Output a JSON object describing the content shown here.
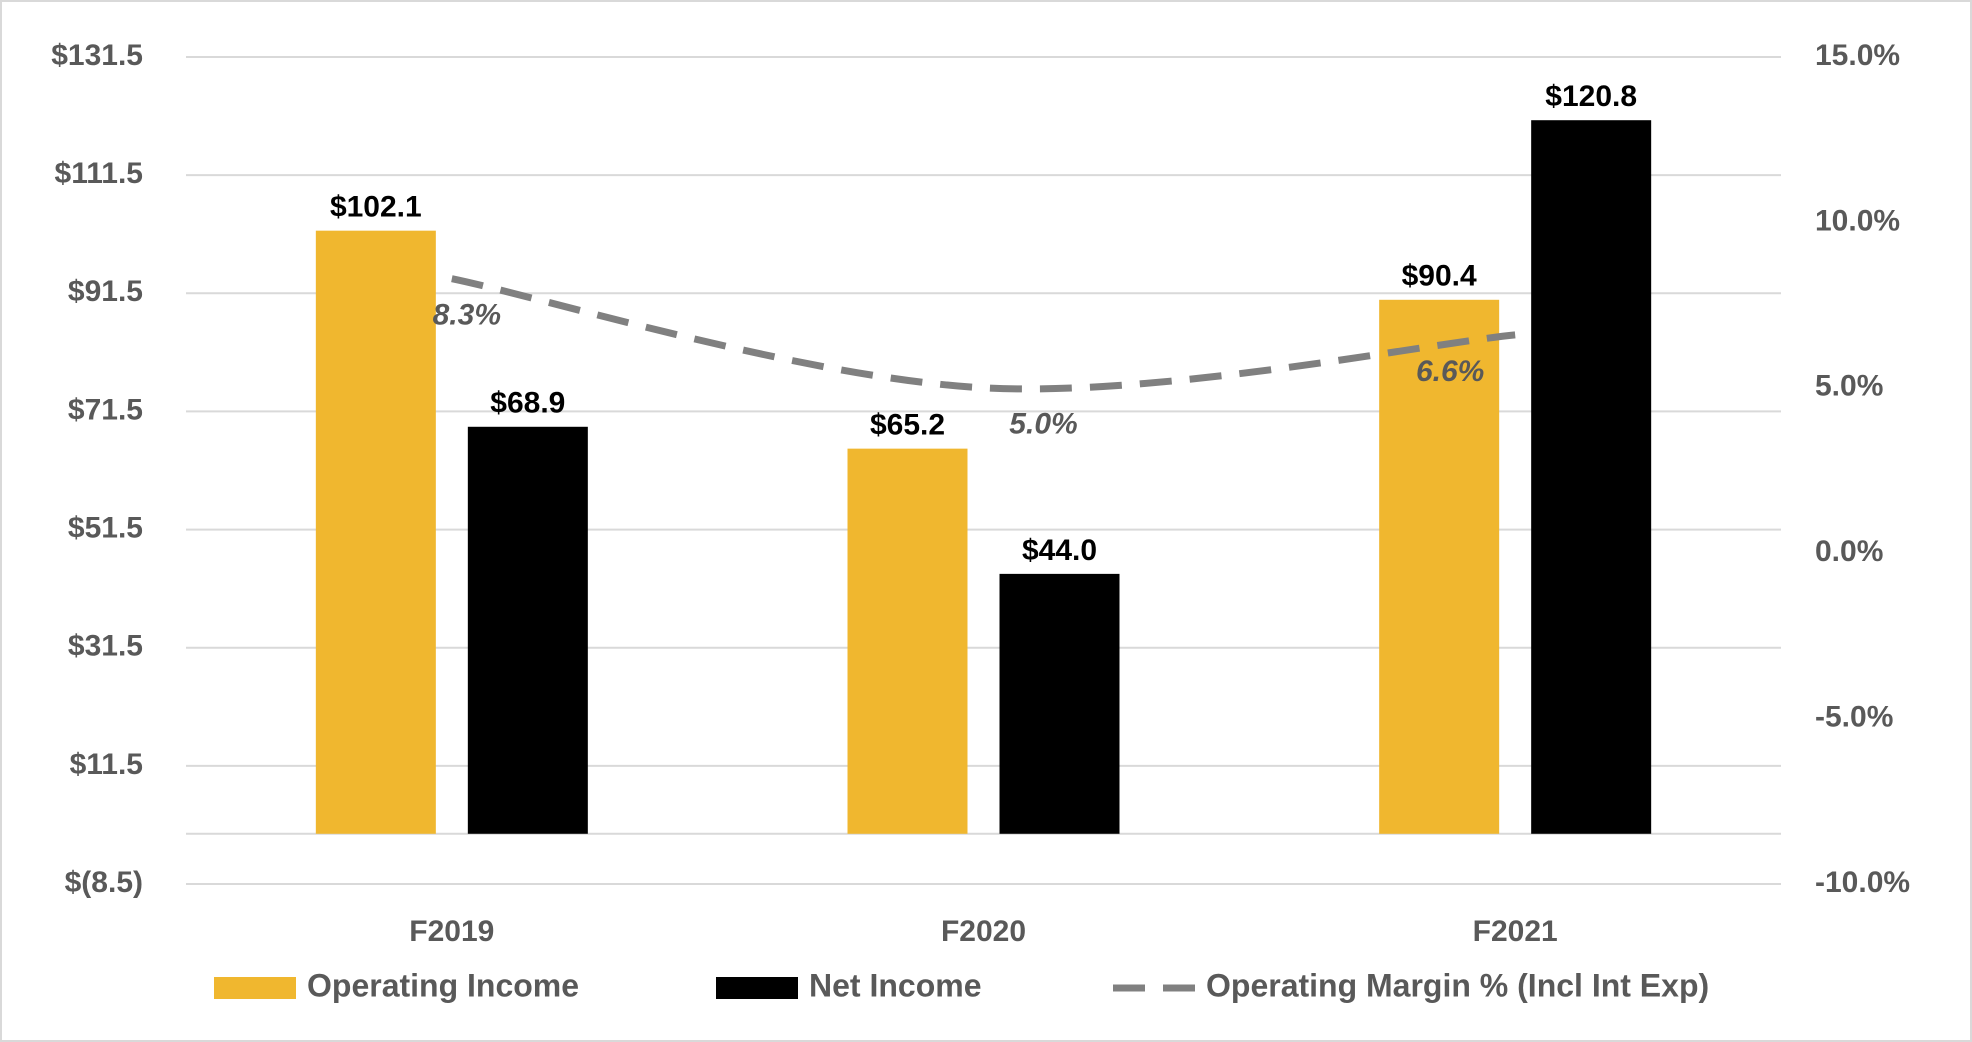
{
  "chart_data": {
    "type": "bar",
    "categories": [
      "F2019",
      "F2020",
      "F2021"
    ],
    "series": [
      {
        "name": "Operating Income",
        "color": "#f0b72f",
        "values": [
          102.1,
          65.2,
          90.4
        ],
        "value_labels": [
          "$102.1",
          "$65.2",
          "$90.4"
        ]
      },
      {
        "name": "Net Income",
        "color": "#000000",
        "values": [
          68.9,
          44.0,
          120.8
        ],
        "value_labels": [
          "$68.9",
          "$44.0",
          "$120.8"
        ]
      },
      {
        "name": "Operating Margin % (Incl Int Exp)",
        "color": "#808080",
        "type": "line",
        "axis": "y2",
        "values": [
          8.3,
          5.0,
          6.6
        ],
        "value_labels": [
          "8.3%",
          "5.0%",
          "6.6%"
        ]
      }
    ],
    "ylim": [
      -8.5,
      131.5
    ],
    "yticks": [
      {
        "value": -8.5,
        "label": "$(8.5)"
      },
      {
        "value": 11.5,
        "label": "$11.5"
      },
      {
        "value": 31.5,
        "label": "$31.5"
      },
      {
        "value": 51.5,
        "label": "$51.5"
      },
      {
        "value": 71.5,
        "label": "$71.5"
      },
      {
        "value": 91.5,
        "label": "$91.5"
      },
      {
        "value": 111.5,
        "label": "$111.5"
      },
      {
        "value": 131.5,
        "label": "$131.5"
      }
    ],
    "y2lim": [
      -10,
      15
    ],
    "y2ticks": [
      {
        "value": -10,
        "label": "-10.0%"
      },
      {
        "value": -5,
        "label": "-5.0%"
      },
      {
        "value": 0,
        "label": "0.0%"
      },
      {
        "value": 5,
        "label": "5.0%"
      },
      {
        "value": 10,
        "label": "10.0%"
      },
      {
        "value": 15,
        "label": "15.0%"
      }
    ],
    "grid": true
  }
}
